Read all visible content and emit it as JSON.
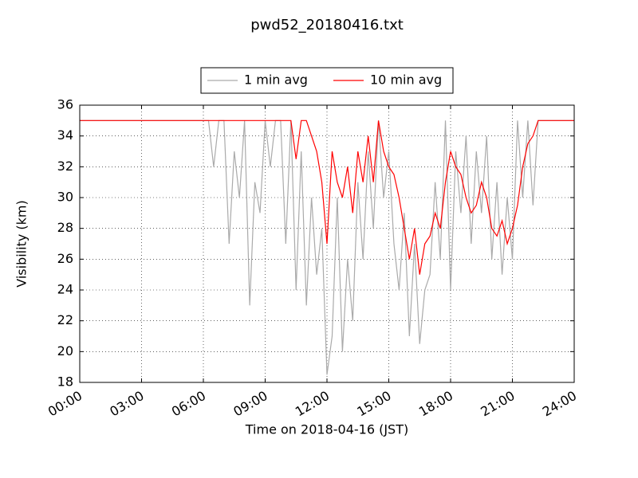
{
  "chart_data": {
    "type": "line",
    "title": "pwd52_20180416.txt",
    "x_label": "Time on 2018-04-16 (JST)",
    "y_label": "Visibility (km)",
    "x": [
      0,
      0.25,
      0.5,
      0.75,
      1,
      1.25,
      1.5,
      1.75,
      2,
      2.25,
      2.5,
      2.75,
      3,
      3.25,
      3.5,
      3.75,
      4,
      4.25,
      4.5,
      4.75,
      5,
      5.25,
      5.5,
      5.75,
      6,
      6.25,
      6.5,
      6.75,
      7,
      7.25,
      7.5,
      7.75,
      8,
      8.25,
      8.5,
      8.75,
      9,
      9.25,
      9.5,
      9.75,
      10,
      10.25,
      10.5,
      10.75,
      11,
      11.25,
      11.5,
      11.75,
      12,
      12.25,
      12.5,
      12.75,
      13,
      13.25,
      13.5,
      13.75,
      14,
      14.25,
      14.5,
      14.75,
      15,
      15.25,
      15.5,
      15.75,
      16,
      16.25,
      16.5,
      16.75,
      17,
      17.25,
      17.5,
      17.75,
      18,
      18.25,
      18.5,
      18.75,
      19,
      19.25,
      19.5,
      19.75,
      20,
      20.25,
      20.5,
      20.75,
      21,
      21.25,
      21.5,
      21.75,
      22,
      22.25,
      22.5,
      22.75,
      23,
      23.25,
      23.5,
      23.75,
      24
    ],
    "series": [
      {
        "name": "1 min avg",
        "color": "#aaaaaa",
        "values": [
          35,
          35,
          35,
          35,
          35,
          35,
          35,
          35,
          35,
          35,
          35,
          35,
          35,
          35,
          35,
          35,
          35,
          35,
          35,
          35,
          35,
          35,
          35,
          35,
          35,
          35,
          32,
          35,
          35,
          27,
          33,
          30,
          35,
          23,
          31,
          29,
          35,
          32,
          35,
          35,
          27,
          35,
          24,
          33,
          23,
          30,
          25,
          28,
          18.5,
          21,
          30,
          20,
          26,
          22,
          31,
          26,
          33,
          28,
          35,
          30,
          33,
          27,
          24,
          29,
          21,
          27,
          20.5,
          24,
          25,
          31,
          26,
          35,
          24,
          33,
          29,
          34,
          27,
          33,
          29,
          34,
          26,
          31,
          25,
          30,
          26,
          35,
          30,
          35,
          29.5,
          35,
          35,
          35,
          35,
          35,
          35,
          35,
          35
        ]
      },
      {
        "name": "10 min avg",
        "color": "#ff0000",
        "values": [
          35,
          35,
          35,
          35,
          35,
          35,
          35,
          35,
          35,
          35,
          35,
          35,
          35,
          35,
          35,
          35,
          35,
          35,
          35,
          35,
          35,
          35,
          35,
          35,
          35,
          35,
          35,
          35,
          35,
          35,
          35,
          35,
          35,
          35,
          35,
          35,
          35,
          35,
          35,
          35,
          35,
          35,
          32.5,
          35,
          35,
          34,
          33,
          31,
          27,
          33,
          31,
          30,
          32,
          29,
          33,
          31,
          34,
          31,
          35,
          33,
          32,
          31.5,
          30,
          28,
          26,
          28,
          25,
          27,
          27.5,
          29,
          28,
          31,
          33,
          32,
          31.5,
          30,
          29,
          29.5,
          31,
          30,
          28,
          27.5,
          28.5,
          27,
          28,
          29.5,
          32,
          33.5,
          34,
          35,
          35,
          35,
          35,
          35,
          35,
          35,
          35
        ]
      }
    ],
    "xlim": [
      0,
      24
    ],
    "xticks": [
      {
        "value": 0,
        "label": "00:00"
      },
      {
        "value": 3,
        "label": "03:00"
      },
      {
        "value": 6,
        "label": "06:00"
      },
      {
        "value": 9,
        "label": "09:00"
      },
      {
        "value": 12,
        "label": "12:00"
      },
      {
        "value": 15,
        "label": "15:00"
      },
      {
        "value": 18,
        "label": "18:00"
      },
      {
        "value": 21,
        "label": "21:00"
      },
      {
        "value": 24,
        "label": "24:00"
      }
    ],
    "ylim": [
      18,
      36
    ],
    "yticks": [
      18,
      20,
      22,
      24,
      26,
      28,
      30,
      32,
      34,
      36
    ],
    "grid": true,
    "legend": "top"
  }
}
